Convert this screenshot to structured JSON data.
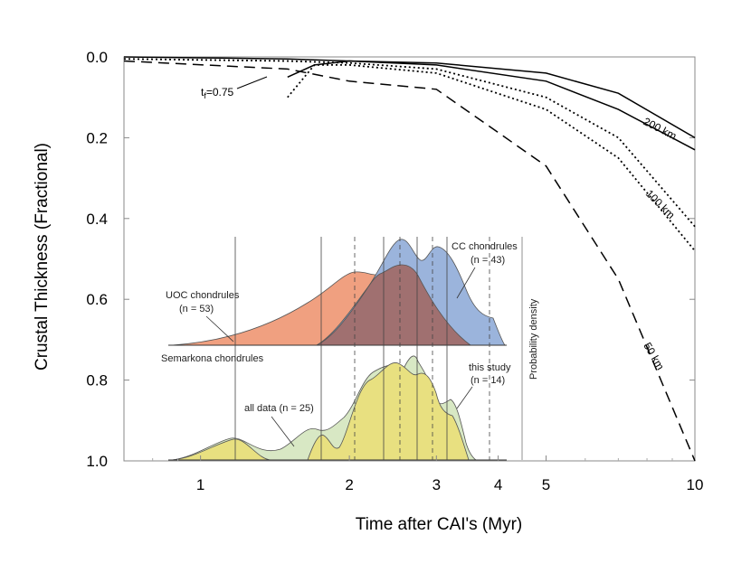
{
  "chart_data": {
    "type": "line",
    "title": "",
    "xlabel": "Time after CAI's (Myr)",
    "ylabel": "Crustal Thickness (Fractional)",
    "xscale": "log",
    "xlim": [
      0.7,
      10
    ],
    "ylim": [
      1.0,
      0.0
    ],
    "x_ticks": [
      1,
      2,
      3,
      4,
      5,
      10
    ],
    "x_tick_labels": [
      "1",
      "2",
      "3",
      "4",
      "5",
      "10"
    ],
    "y_ticks": [
      0.0,
      0.2,
      0.4,
      0.6,
      0.8,
      1.0
    ],
    "y_tick_labels": [
      "0.0",
      "0.2",
      "0.4",
      "0.6",
      "0.8",
      "1.0"
    ],
    "series": [
      {
        "name": "200 km (a)",
        "style": "solid",
        "x": [
          0.7,
          1.5,
          2.0,
          3.0,
          5.0,
          7.0,
          10.0
        ],
        "y": [
          0.0,
          0.005,
          0.01,
          0.015,
          0.04,
          0.09,
          0.2
        ]
      },
      {
        "name": "200 km (b)",
        "style": "solid",
        "x": [
          1.5,
          1.7,
          2.0,
          3.0,
          5.0,
          7.0,
          10.0
        ],
        "y": [
          0.05,
          0.02,
          0.01,
          0.02,
          0.06,
          0.13,
          0.23
        ]
      },
      {
        "name": "100 km (a)",
        "style": "dotted",
        "x": [
          0.7,
          1.5,
          2.0,
          3.0,
          5.0,
          7.0,
          10.0
        ],
        "y": [
          0.005,
          0.01,
          0.015,
          0.03,
          0.1,
          0.2,
          0.42
        ]
      },
      {
        "name": "100 km (b)",
        "style": "dotted",
        "x": [
          1.5,
          1.7,
          2.0,
          3.0,
          5.0,
          7.0,
          10.0
        ],
        "y": [
          0.1,
          0.02,
          0.02,
          0.04,
          0.13,
          0.25,
          0.48
        ]
      },
      {
        "name": "50 km",
        "style": "dashed",
        "x": [
          0.7,
          1.5,
          2.0,
          3.0,
          5.0,
          7.0,
          10.0
        ],
        "y": [
          0.01,
          0.03,
          0.06,
          0.08,
          0.27,
          0.55,
          1.0
        ]
      }
    ],
    "annotations": {
      "tf_label": "t",
      "tf_sub": "f",
      "tf_value": "=0.75",
      "label_200": "200 km",
      "label_100": "100 km",
      "label_50": "50 km"
    },
    "inset": {
      "probability_label": "Probability density",
      "upper": {
        "uoc_label": "UOC chondrules",
        "uoc_n": "(n = 53)",
        "cc_label": "CC chondrules",
        "cc_n": "(n = 43)",
        "semarkona_label": "Semarkona chondrules",
        "uoc_color": "#f0a080",
        "cc_color": "#9bb4dc",
        "overlap_color": "#a07070"
      },
      "lower": {
        "all_label": "all data (n = 25)",
        "study_label": "this study",
        "study_n": "(n = 14)",
        "all_color": "#d8e8c4",
        "study_color": "#e8e080"
      }
    }
  }
}
